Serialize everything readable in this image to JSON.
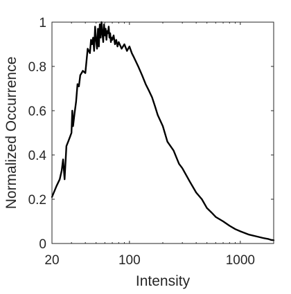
{
  "chart_data": {
    "type": "line",
    "title": "",
    "xlabel": "Intensity",
    "ylabel": "Normalized Occurrence",
    "x_scale": "log",
    "xlim": [
      20,
      2000
    ],
    "ylim": [
      0,
      1
    ],
    "x_ticks": [
      20,
      100,
      1000
    ],
    "x_tick_labels": [
      "20",
      "100",
      "1000"
    ],
    "y_ticks": [
      0,
      0.2,
      0.4,
      0.6,
      0.8,
      1
    ],
    "y_tick_labels": [
      "0",
      "0.2",
      "0.4",
      "0.6",
      "0.8",
      "1"
    ],
    "grid": false,
    "legend": "none",
    "line_color": "#000000",
    "series": [
      {
        "x": [
          20,
          22,
          23.5,
          24.5,
          25.2,
          26,
          27,
          28,
          29,
          30,
          30.5,
          31,
          32,
          33,
          34,
          35,
          36,
          37,
          38,
          40,
          42,
          43,
          44,
          45,
          46,
          47,
          48,
          49,
          50,
          51,
          52,
          53,
          54,
          55,
          56,
          57,
          58,
          59,
          60,
          61,
          62,
          63,
          64,
          65,
          66,
          67,
          68,
          69,
          70,
          72,
          74,
          76,
          78,
          80,
          85,
          90,
          95,
          100,
          105,
          110,
          120,
          130,
          140,
          150,
          160,
          170,
          180,
          200,
          220,
          250,
          280,
          300,
          350,
          400,
          450,
          500,
          550,
          600,
          700,
          800,
          900,
          1000,
          1200,
          1400,
          1600,
          1800,
          1900,
          2000
        ],
        "y": [
          0.21,
          0.26,
          0.29,
          0.33,
          0.38,
          0.29,
          0.44,
          0.46,
          0.48,
          0.5,
          0.6,
          0.53,
          0.59,
          0.64,
          0.72,
          0.71,
          0.76,
          0.77,
          0.78,
          0.77,
          0.88,
          0.87,
          0.86,
          0.92,
          0.9,
          0.93,
          0.87,
          0.98,
          0.92,
          0.88,
          0.97,
          0.89,
          0.99,
          0.93,
          1.0,
          0.95,
          0.91,
          0.99,
          0.94,
          0.97,
          0.92,
          0.96,
          0.95,
          0.98,
          0.93,
          0.95,
          0.91,
          0.93,
          0.92,
          0.94,
          0.9,
          0.92,
          0.89,
          0.91,
          0.88,
          0.9,
          0.87,
          0.89,
          0.86,
          0.84,
          0.8,
          0.76,
          0.72,
          0.69,
          0.66,
          0.62,
          0.58,
          0.53,
          0.46,
          0.42,
          0.36,
          0.34,
          0.28,
          0.23,
          0.2,
          0.16,
          0.14,
          0.12,
          0.1,
          0.08,
          0.065,
          0.055,
          0.04,
          0.032,
          0.025,
          0.02,
          0.016,
          0.015
        ]
      }
    ]
  }
}
